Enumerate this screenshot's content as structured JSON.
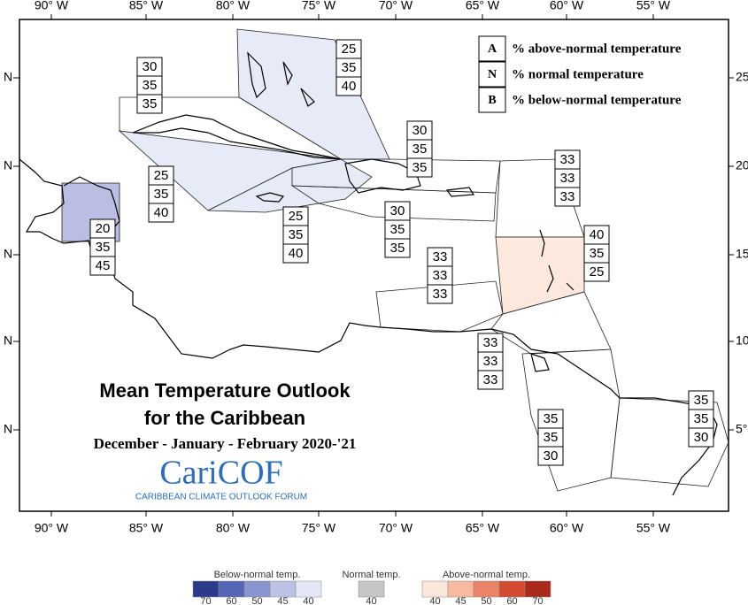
{
  "map": {
    "title_line1": "Mean Temperature Outlook",
    "title_line2": "for the Caribbean",
    "period": "December - January - February 2020-'21"
  },
  "logo": {
    "name": "CariCOF",
    "subtitle": "CARIBBEAN CLIMATE OUTLOOK FORUM"
  },
  "axes": {
    "lon_labels": [
      "90° W",
      "85° W",
      "80° W",
      "75° W",
      "70° W",
      "65° W",
      "60° W",
      "55° W"
    ],
    "lat_left": [
      "N",
      "N",
      "N",
      "N",
      "N"
    ],
    "lat_right": [
      "25",
      "20",
      "15",
      "10",
      "5°"
    ]
  },
  "key": [
    {
      "letter": "A",
      "text": "% above-normal temperature"
    },
    {
      "letter": "N",
      "text": "% normal temperature"
    },
    {
      "letter": "B",
      "text": "% below-normal temperature"
    }
  ],
  "regions": [
    {
      "values": [
        25,
        35,
        40
      ],
      "color": "#e4e8f6"
    },
    {
      "values": [
        30,
        35,
        35
      ]
    },
    {
      "values": [
        25,
        35,
        40
      ],
      "color": "#e4e8f6"
    },
    {
      "values": [
        20,
        35,
        45
      ],
      "color": "#b2b7e0"
    },
    {
      "values": [
        25,
        35,
        40
      ],
      "color": "#e4e8f6"
    },
    {
      "values": [
        30,
        35,
        35
      ]
    },
    {
      "values": [
        30,
        35,
        35
      ]
    },
    {
      "values": [
        33,
        33,
        33
      ]
    },
    {
      "values": [
        40,
        35,
        25
      ],
      "color": "#fde6da"
    },
    {
      "values": [
        33,
        33,
        33
      ]
    },
    {
      "values": [
        33,
        33,
        33
      ]
    },
    {
      "values": [
        35,
        35,
        30
      ]
    },
    {
      "values": [
        35,
        35,
        30
      ]
    }
  ],
  "colorbar": {
    "below": {
      "title": "Below-normal temp.",
      "labels": [
        70,
        60,
        50,
        45,
        40
      ],
      "colors": [
        "#2b3a8a",
        "#5566b5",
        "#8a95cf",
        "#bcc2e6",
        "#e4e8f6"
      ]
    },
    "normal": {
      "title": "Normal temp.",
      "labels": [
        40
      ],
      "colors": [
        "#c6c6c6"
      ]
    },
    "above": {
      "title": "Above-normal temp.",
      "labels": [
        40,
        45,
        50,
        60,
        70
      ],
      "colors": [
        "#fde6da",
        "#f7b9a0",
        "#ea8367",
        "#d44b34",
        "#a92a1a"
      ]
    }
  }
}
